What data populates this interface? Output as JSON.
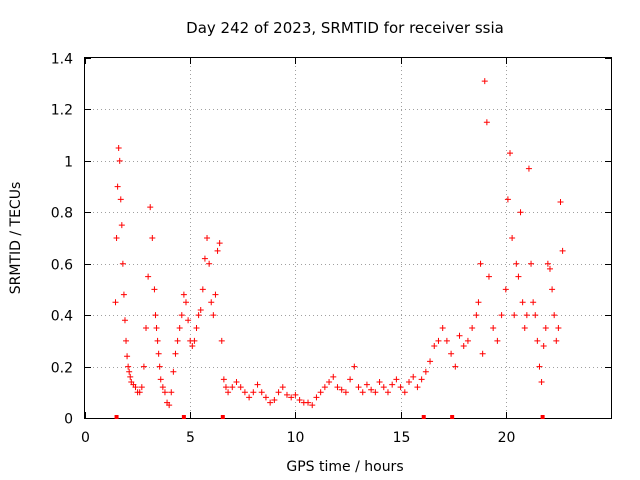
{
  "chart_data": {
    "type": "scatter",
    "title": "Day 242 of 2023, SRMTID for receiver ssia",
    "xlabel": "GPS time / hours",
    "ylabel": "SRMTID / TECUs",
    "xlim": [
      0,
      25
    ],
    "ylim": [
      0,
      1.4
    ],
    "grid": true,
    "x_ticks": [
      0,
      5,
      10,
      15,
      20
    ],
    "x_tick_labels": [
      "0",
      "5",
      "10",
      "15",
      "20"
    ],
    "y_ticks": [
      0,
      0.2,
      0.4,
      0.6,
      0.8,
      1.0,
      1.2,
      1.4
    ],
    "y_tick_labels": [
      "0",
      "0.2",
      "0.4",
      "0.6",
      "0.8",
      "1",
      "1.2",
      "1.4"
    ],
    "marker": "+",
    "color": "#ff0000",
    "series": [
      {
        "name": "SRMTID",
        "x": [
          1.45,
          1.5,
          1.55,
          1.6,
          1.65,
          1.7,
          1.75,
          1.8,
          1.85,
          1.9,
          1.95,
          2.0,
          2.05,
          2.1,
          2.15,
          2.2,
          2.3,
          2.4,
          2.5,
          2.6,
          2.7,
          2.8,
          2.9,
          3.0,
          3.1,
          3.2,
          3.3,
          3.35,
          3.4,
          3.45,
          3.5,
          3.55,
          3.6,
          3.7,
          3.8,
          3.9,
          4.0,
          4.1,
          4.2,
          4.3,
          4.4,
          4.5,
          4.6,
          4.7,
          4.8,
          4.9,
          5.0,
          5.1,
          5.2,
          5.3,
          5.4,
          5.5,
          5.6,
          5.7,
          5.8,
          5.9,
          6.0,
          6.1,
          6.2,
          6.3,
          6.4,
          6.5,
          6.6,
          6.7,
          6.8,
          7.0,
          7.2,
          7.4,
          7.6,
          7.8,
          8.0,
          8.2,
          8.4,
          8.6,
          8.8,
          9.0,
          9.2,
          9.4,
          9.6,
          9.8,
          10.0,
          10.2,
          10.4,
          10.6,
          10.8,
          11.0,
          11.2,
          11.4,
          11.6,
          11.8,
          12.0,
          12.2,
          12.4,
          12.6,
          12.8,
          13.0,
          13.2,
          13.4,
          13.6,
          13.8,
          14.0,
          14.2,
          14.4,
          14.6,
          14.8,
          15.0,
          15.2,
          15.4,
          15.6,
          15.8,
          16.0,
          16.2,
          16.4,
          16.6,
          16.8,
          17.0,
          17.2,
          17.4,
          17.6,
          17.8,
          18.0,
          18.2,
          18.4,
          18.6,
          18.7,
          18.8,
          18.9,
          19.0,
          19.1,
          19.2,
          19.4,
          19.6,
          19.8,
          20.0,
          20.1,
          20.2,
          20.3,
          20.4,
          20.5,
          20.6,
          20.7,
          20.8,
          20.9,
          21.0,
          21.1,
          21.2,
          21.3,
          21.4,
          21.5,
          21.6,
          21.7,
          21.8,
          21.9,
          22.0,
          22.1,
          22.2,
          22.3,
          22.4,
          22.5,
          22.6,
          22.7
        ],
        "y": [
          0.45,
          0.7,
          0.9,
          1.05,
          1.0,
          0.85,
          0.75,
          0.6,
          0.48,
          0.38,
          0.3,
          0.24,
          0.2,
          0.18,
          0.16,
          0.14,
          0.13,
          0.12,
          0.1,
          0.1,
          0.12,
          0.2,
          0.35,
          0.55,
          0.82,
          0.7,
          0.5,
          0.4,
          0.35,
          0.3,
          0.25,
          0.2,
          0.15,
          0.12,
          0.1,
          0.06,
          0.05,
          0.1,
          0.18,
          0.25,
          0.3,
          0.35,
          0.4,
          0.48,
          0.45,
          0.38,
          0.3,
          0.28,
          0.3,
          0.35,
          0.4,
          0.42,
          0.5,
          0.62,
          0.7,
          0.6,
          0.45,
          0.4,
          0.48,
          0.65,
          0.68,
          0.3,
          0.15,
          0.12,
          0.1,
          0.12,
          0.14,
          0.12,
          0.1,
          0.08,
          0.1,
          0.13,
          0.1,
          0.08,
          0.06,
          0.07,
          0.1,
          0.12,
          0.09,
          0.08,
          0.09,
          0.07,
          0.06,
          0.06,
          0.05,
          0.08,
          0.1,
          0.12,
          0.14,
          0.16,
          0.12,
          0.11,
          0.1,
          0.15,
          0.2,
          0.12,
          0.1,
          0.13,
          0.11,
          0.1,
          0.14,
          0.12,
          0.1,
          0.13,
          0.15,
          0.12,
          0.1,
          0.14,
          0.16,
          0.12,
          0.15,
          0.18,
          0.22,
          0.28,
          0.3,
          0.35,
          0.3,
          0.25,
          0.2,
          0.32,
          0.28,
          0.3,
          0.35,
          0.4,
          0.45,
          0.6,
          0.25,
          1.31,
          1.15,
          0.55,
          0.35,
          0.3,
          0.4,
          0.5,
          0.85,
          1.03,
          0.7,
          0.4,
          0.6,
          0.55,
          0.8,
          0.45,
          0.35,
          0.4,
          0.97,
          0.6,
          0.45,
          0.4,
          0.3,
          0.2,
          0.14,
          0.28,
          0.35,
          0.6,
          0.58,
          0.5,
          0.4,
          0.3,
          0.35,
          0.84,
          0.65
        ]
      }
    ],
    "gap_markers_x": [
      1.5,
      4.7,
      6.55,
      16.1,
      17.45,
      21.75
    ]
  }
}
